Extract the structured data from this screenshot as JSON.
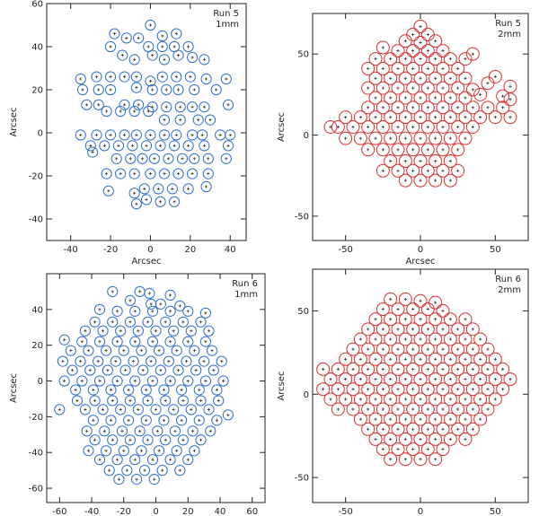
{
  "chart_data": [
    {
      "type": "scatter",
      "title": "",
      "annotation": [
        "Run 5",
        "1mm"
      ],
      "xlabel": "Arcsec",
      "ylabel": "Arcsec",
      "xlim": [
        -52,
        48
      ],
      "ylim": [
        -50,
        60
      ],
      "xticks": [
        -40,
        -20,
        0,
        20,
        40
      ],
      "yticks": [
        -40,
        -20,
        0,
        20,
        40,
        60
      ],
      "grid": false,
      "color": "#2f6fd0",
      "series": [
        {
          "x": [
            0,
            6,
            -6,
            13,
            -18,
            -12,
            -1,
            6,
            12,
            19,
            -20,
            -14,
            -8,
            1,
            7,
            14,
            21,
            27,
            -35,
            -27,
            -20,
            -13,
            -7,
            0,
            6,
            13,
            20,
            28,
            38,
            -34,
            -26,
            -20,
            -7,
            1,
            8,
            14,
            22,
            33,
            -32,
            -26,
            -13,
            -6,
            1,
            8,
            15,
            21,
            27,
            39,
            -22,
            -15,
            -8,
            -1,
            7,
            15,
            24,
            30,
            -35,
            -27,
            -20,
            -13,
            -7,
            0,
            7,
            13,
            21,
            26,
            35,
            40,
            -30,
            -23,
            -16,
            -9,
            -2,
            5,
            12,
            19,
            27,
            39,
            -29,
            -17,
            -10,
            -4,
            2,
            9,
            16,
            22,
            29,
            38,
            -22,
            -15,
            -8,
            0,
            7,
            14,
            21,
            29,
            -21,
            -8,
            -3,
            4,
            11,
            19,
            28,
            -7,
            -2,
            5,
            12
          ],
          "y": [
            50,
            45,
            44,
            46,
            46,
            44,
            40,
            40,
            40,
            40,
            40,
            36,
            34,
            36,
            34,
            36,
            35,
            34,
            25,
            26,
            26,
            26,
            26,
            24,
            26,
            26,
            26,
            25,
            25,
            20,
            20,
            20,
            21,
            20,
            20,
            20,
            20,
            20,
            13,
            13,
            13,
            13,
            12,
            12,
            12,
            12,
            12,
            13,
            10,
            10,
            10,
            10,
            6,
            6,
            6,
            6,
            -1,
            -1,
            -1,
            -1,
            -1,
            -1,
            -1,
            -1,
            -1,
            -1,
            -1,
            -1,
            -6,
            -6,
            -6,
            -6,
            -6,
            -6,
            -6,
            -6,
            -6,
            -6,
            -9,
            -12,
            -12,
            -12,
            -12,
            -12,
            -12,
            -12,
            -12,
            -12,
            -19,
            -19,
            -19,
            -19,
            -19,
            -19,
            -19,
            -19,
            -27,
            -28,
            -26,
            -26,
            -26,
            -26,
            -25,
            -33,
            -31,
            -32,
            -32
          ]
        }
      ]
    },
    {
      "type": "scatter",
      "title": "",
      "annotation": [
        "Run 5",
        "2mm"
      ],
      "xlabel": "Arcsec",
      "ylabel": "Arcsec",
      "xlim": [
        -72,
        72
      ],
      "ylim": [
        -65,
        75
      ],
      "xticks": [
        -50,
        0,
        50
      ],
      "yticks": [
        -50,
        0,
        50
      ],
      "grid": false,
      "color": "#d93030",
      "series": [
        {
          "x": [
            0,
            -5,
            5,
            -10,
            0,
            10,
            -25,
            -15,
            -5,
            5,
            15,
            35,
            -30,
            -20,
            -10,
            0,
            10,
            20,
            30,
            -35,
            -25,
            -15,
            -5,
            5,
            15,
            25,
            50,
            -30,
            -20,
            -10,
            0,
            10,
            20,
            30,
            45,
            60,
            -35,
            -25,
            -15,
            -5,
            5,
            15,
            25,
            35,
            40,
            55,
            60,
            -30,
            -20,
            -10,
            0,
            10,
            20,
            30,
            -35,
            -25,
            -15,
            -5,
            5,
            15,
            25,
            35,
            45,
            55,
            -60,
            -50,
            -40,
            -30,
            -20,
            -10,
            0,
            10,
            20,
            30,
            40,
            50,
            60,
            -55,
            -45,
            -35,
            -25,
            -15,
            -5,
            5,
            15,
            25,
            35,
            -50,
            -40,
            -30,
            -20,
            -10,
            0,
            10,
            20,
            30,
            -35,
            -25,
            -15,
            -5,
            5,
            15,
            25,
            -20,
            -10,
            0,
            10,
            20,
            -25,
            -15,
            -5,
            5,
            15,
            25,
            -10,
            0,
            10,
            20
          ],
          "y": [
            67,
            62,
            62,
            58,
            57,
            58,
            54,
            52,
            52,
            52,
            52,
            50,
            47,
            47,
            47,
            47,
            47,
            47,
            47,
            41,
            41,
            41,
            41,
            41,
            41,
            41,
            36,
            35,
            35,
            35,
            35,
            35,
            35,
            35,
            32,
            30,
            29,
            29,
            29,
            29,
            29,
            29,
            29,
            28,
            25,
            24,
            22,
            23,
            23,
            23,
            23,
            23,
            23,
            23,
            17,
            17,
            17,
            17,
            17,
            17,
            17,
            17,
            17,
            17,
            5,
            11,
            11,
            11,
            11,
            11,
            11,
            11,
            11,
            11,
            11,
            11,
            11,
            5,
            5,
            5,
            5,
            5,
            5,
            5,
            5,
            5,
            5,
            -2,
            -2,
            -2,
            -2,
            -2,
            -2,
            -2,
            -2,
            -2,
            -9,
            -9,
            -9,
            -9,
            -9,
            -9,
            -9,
            -16,
            -16,
            -16,
            -16,
            -16,
            -22,
            -22,
            -22,
            -22,
            -22,
            -22,
            -28,
            -28,
            -28,
            -28
          ]
        }
      ]
    },
    {
      "type": "scatter",
      "title": "",
      "annotation": [
        "Run 6",
        "1mm"
      ],
      "xlabel": "Arcsec",
      "ylabel": "Arcsec",
      "xlim": [
        -68,
        68
      ],
      "ylim": [
        -68,
        60
      ],
      "xticks": [
        -60,
        -40,
        -20,
        0,
        20,
        40,
        60
      ],
      "yticks": [
        -60,
        -40,
        -20,
        0,
        20,
        40
      ],
      "grid": false,
      "color": "#2f6fd0",
      "series": [
        {
          "x": [
            -27,
            -10,
            -4,
            9,
            -16,
            -3,
            3,
            15,
            -35,
            -24,
            -13,
            -2,
            9,
            20,
            31,
            -38,
            -27,
            -16,
            -5,
            6,
            17,
            28,
            -44,
            -33,
            -22,
            -11,
            0,
            11,
            22,
            33,
            -57,
            -46,
            -35,
            -24,
            -13,
            -2,
            9,
            20,
            31,
            -53,
            -42,
            -31,
            -20,
            -9,
            2,
            13,
            24,
            35,
            -58,
            -47,
            -36,
            -25,
            -14,
            -3,
            8,
            19,
            30,
            41,
            -52,
            -41,
            -30,
            -19,
            -8,
            3,
            14,
            25,
            36,
            -57,
            -46,
            -35,
            -24,
            -13,
            -2,
            9,
            20,
            31,
            42,
            -50,
            -39,
            -28,
            -17,
            -6,
            5,
            16,
            27,
            38,
            -60,
            -49,
            -38,
            -27,
            -16,
            -5,
            6,
            17,
            28,
            39,
            -44,
            -33,
            -22,
            -11,
            0,
            11,
            22,
            33,
            45,
            -39,
            -28,
            -17,
            -6,
            5,
            16,
            27,
            38,
            -43,
            -32,
            -21,
            -10,
            1,
            12,
            23,
            34,
            -38,
            -27,
            -16,
            -5,
            6,
            17,
            28,
            -42,
            -31,
            -20,
            -9,
            2,
            13,
            24,
            -35,
            -24,
            -13,
            -2,
            9,
            20,
            -29,
            -18,
            -7,
            4,
            15,
            -23,
            -12,
            -1
          ],
          "y": [
            50,
            50,
            49,
            48,
            45,
            43,
            43,
            42,
            40,
            39,
            39,
            39,
            39,
            39,
            38,
            33,
            33,
            33,
            33,
            33,
            33,
            33,
            28,
            28,
            28,
            28,
            28,
            28,
            28,
            28,
            23,
            22,
            22,
            22,
            22,
            22,
            22,
            22,
            22,
            17,
            17,
            17,
            17,
            17,
            17,
            17,
            17,
            17,
            11,
            11,
            11,
            11,
            11,
            11,
            11,
            11,
            11,
            11,
            6,
            6,
            6,
            6,
            6,
            6,
            6,
            6,
            6,
            0,
            0,
            0,
            0,
            0,
            0,
            0,
            0,
            0,
            0,
            -5,
            -5,
            -5,
            -5,
            -5,
            -5,
            -5,
            -5,
            -5,
            -16,
            -11,
            -11,
            -11,
            -11,
            -11,
            -11,
            -11,
            -11,
            -11,
            -16,
            -16,
            -16,
            -16,
            -16,
            -16,
            -16,
            -16,
            -19,
            -22,
            -22,
            -22,
            -22,
            -22,
            -22,
            -22,
            -22,
            -28,
            -28,
            -28,
            -28,
            -28,
            -28,
            -28,
            -28,
            -33,
            -33,
            -33,
            -33,
            -33,
            -33,
            -33,
            -39,
            -39,
            -39,
            -39,
            -39,
            -39,
            -39,
            -44,
            -44,
            -44,
            -44,
            -44,
            -44,
            -50,
            -50,
            -50,
            -50,
            -50,
            -55,
            -55,
            -55
          ]
        }
      ]
    },
    {
      "type": "scatter",
      "title": "",
      "annotation": [
        "Run 6",
        "2mm"
      ],
      "xlabel": "Arcsec",
      "ylabel": "Arcsec",
      "xlim": [
        -72,
        72
      ],
      "ylim": [
        -65,
        75
      ],
      "xticks": [
        -50,
        0,
        50
      ],
      "yticks": [
        -50,
        0,
        50
      ],
      "grid": false,
      "color": "#d93030",
      "series": [
        {
          "x": [
            -20,
            -10,
            0,
            10,
            -25,
            -15,
            -5,
            5,
            15,
            -30,
            -20,
            -10,
            0,
            10,
            20,
            30,
            -35,
            -25,
            -15,
            -5,
            5,
            15,
            25,
            35,
            -40,
            -30,
            -20,
            -10,
            0,
            10,
            20,
            30,
            40,
            -45,
            -35,
            -25,
            -15,
            -5,
            5,
            15,
            25,
            35,
            45,
            -50,
            -40,
            -30,
            -20,
            -10,
            0,
            10,
            20,
            30,
            40,
            50,
            -65,
            -55,
            -45,
            -35,
            -25,
            -15,
            -5,
            5,
            15,
            25,
            35,
            45,
            55,
            -60,
            -50,
            -40,
            -30,
            -20,
            -10,
            0,
            10,
            20,
            30,
            40,
            50,
            60,
            -65,
            -55,
            -45,
            -35,
            -25,
            -15,
            -5,
            5,
            15,
            25,
            35,
            45,
            55,
            -60,
            -50,
            -40,
            -30,
            -20,
            -10,
            0,
            10,
            20,
            30,
            40,
            50,
            -55,
            -45,
            -35,
            -25,
            -15,
            -5,
            5,
            15,
            25,
            35,
            45,
            -40,
            -30,
            -20,
            -10,
            0,
            10,
            20,
            30,
            40,
            -35,
            -25,
            -15,
            -5,
            5,
            15,
            25,
            35,
            -30,
            -20,
            -10,
            0,
            10,
            20,
            30,
            -25,
            -15,
            -5,
            5,
            15,
            -20,
            -10,
            0,
            10
          ],
          "y": [
            57,
            57,
            56,
            55,
            51,
            51,
            51,
            51,
            50,
            45,
            45,
            45,
            45,
            45,
            45,
            45,
            39,
            39,
            39,
            39,
            39,
            39,
            39,
            39,
            33,
            33,
            33,
            33,
            33,
            33,
            33,
            33,
            33,
            27,
            27,
            27,
            27,
            27,
            27,
            27,
            27,
            27,
            27,
            21,
            21,
            21,
            21,
            21,
            21,
            21,
            21,
            21,
            21,
            21,
            15,
            15,
            15,
            15,
            15,
            15,
            15,
            15,
            15,
            15,
            15,
            15,
            15,
            9,
            9,
            9,
            9,
            9,
            9,
            9,
            9,
            9,
            9,
            9,
            9,
            9,
            3,
            3,
            3,
            3,
            3,
            3,
            3,
            3,
            3,
            3,
            3,
            3,
            3,
            -3,
            -3,
            -3,
            -3,
            -3,
            -3,
            -3,
            -3,
            -3,
            -3,
            -3,
            -3,
            -9,
            -9,
            -9,
            -9,
            -9,
            -9,
            -9,
            -9,
            -9,
            -9,
            -9,
            -15,
            -15,
            -15,
            -15,
            -15,
            -15,
            -15,
            -15,
            -15,
            -21,
            -21,
            -21,
            -21,
            -21,
            -21,
            -21,
            -21,
            -27,
            -27,
            -27,
            -27,
            -27,
            -27,
            -27,
            -33,
            -33,
            -33,
            -33,
            -33,
            -39,
            -39,
            -39,
            -39
          ]
        }
      ]
    }
  ]
}
